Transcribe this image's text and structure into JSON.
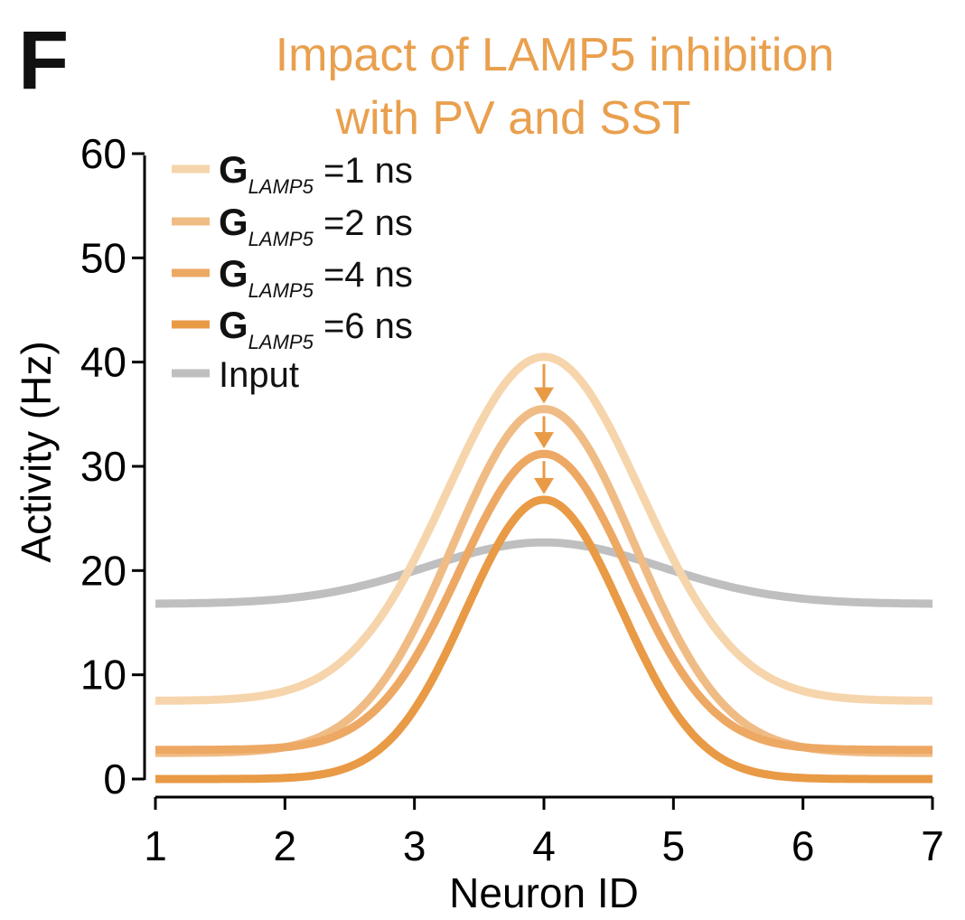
{
  "panel_label": "F",
  "title_lines": [
    "Impact of LAMP5 inhibition",
    "with PV and SST"
  ],
  "title_color": "#E9A04E",
  "chart_data": {
    "type": "line",
    "xlabel": "Neuron ID",
    "ylabel": "Activity (Hz)",
    "xlim": [
      1,
      7
    ],
    "ylim": [
      0,
      60
    ],
    "xticks": [
      "1",
      "2",
      "3",
      "4",
      "5",
      "6",
      "7"
    ],
    "yticks": [
      "0",
      "10",
      "20",
      "30",
      "40",
      "50",
      "60"
    ],
    "grid": false,
    "legend_position": "top-left",
    "series": [
      {
        "name": "G_LAMP5 =1 ns",
        "legend_main": "G",
        "legend_sub": "LAMP5",
        "legend_rest": " =1 ns",
        "color": "#F6D5AC",
        "base": 7.5,
        "peak": 40.5,
        "sigma": 0.75
      },
      {
        "name": "G_LAMP5 =2 ns",
        "legend_main": "G",
        "legend_sub": "LAMP5",
        "legend_rest": " =2 ns",
        "color": "#F0BC85",
        "base": 2.5,
        "peak": 35.5,
        "sigma": 0.7
      },
      {
        "name": "G_LAMP5 =4 ns",
        "legend_main": "G",
        "legend_sub": "LAMP5",
        "legend_rest": " =4 ns",
        "color": "#EDA864",
        "base": 2.8,
        "peak": 31.2,
        "sigma": 0.65
      },
      {
        "name": "G_LAMP5 =6 ns",
        "legend_main": "G",
        "legend_sub": "LAMP5",
        "legend_rest": " =6 ns",
        "color": "#E99A45",
        "base": 0.0,
        "peak": 26.8,
        "sigma": 0.6
      },
      {
        "name": "Input",
        "legend_main": "Input",
        "legend_sub": "",
        "legend_rest": "",
        "color": "#BFBFBF",
        "base": 16.8,
        "peak": 22.7,
        "sigma": 0.9
      }
    ],
    "arrow_color": "#E99A45",
    "arrows_at_x": 4,
    "arrow_spans": [
      [
        40.5,
        35.5
      ],
      [
        35.5,
        31.2
      ],
      [
        31.2,
        26.8
      ]
    ]
  }
}
